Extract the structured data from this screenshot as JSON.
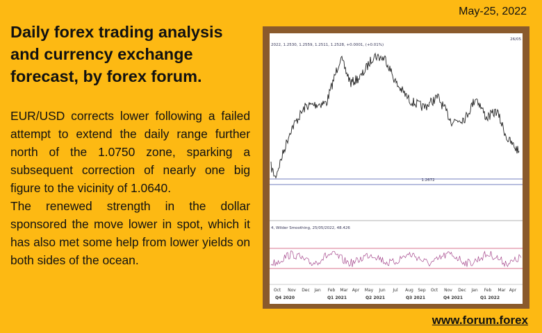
{
  "header": {
    "date": "May-25, 2022",
    "title": "Daily forex trading analysis and currency exchange forecast, by forex forum."
  },
  "body": {
    "paragraphs": [
      "EUR/USD corrects lower following a failed attempt to extend the daily range further north of the 1.0750 zone, sparking a subsequent correction of nearly one big figure to the vicinity of 1.0640.",
      "The renewed strength in the dollar sponsored the move lower in spot, which it has also met some help from lower yields on both sides of the ocean."
    ]
  },
  "chart_image": {
    "price_info": "2022, 1.2530, 1.2559, 1.2511, 1.2528, +0.0001, (+0.01%)",
    "date_corner": "26/05",
    "level_label": "1.2672",
    "indicator_info": "4, Wilder Smoothing, 25/05/2022, 48.426",
    "months": [
      "Oct",
      "Nov",
      "Dec",
      "Jan",
      "Feb",
      "Mar",
      "Apr",
      "May",
      "Jun",
      "Jul",
      "Aug",
      "Sep",
      "Oct",
      "Nov",
      "Dec",
      "Jan",
      "Feb",
      "Mar",
      "Apr"
    ],
    "quarters": [
      "Q4 2020",
      "Q1 2021",
      "Q2 2021",
      "Q3 2021",
      "Q4 2021",
      "Q1 2022"
    ]
  },
  "footer": {
    "website": "www.forum.forex"
  }
}
